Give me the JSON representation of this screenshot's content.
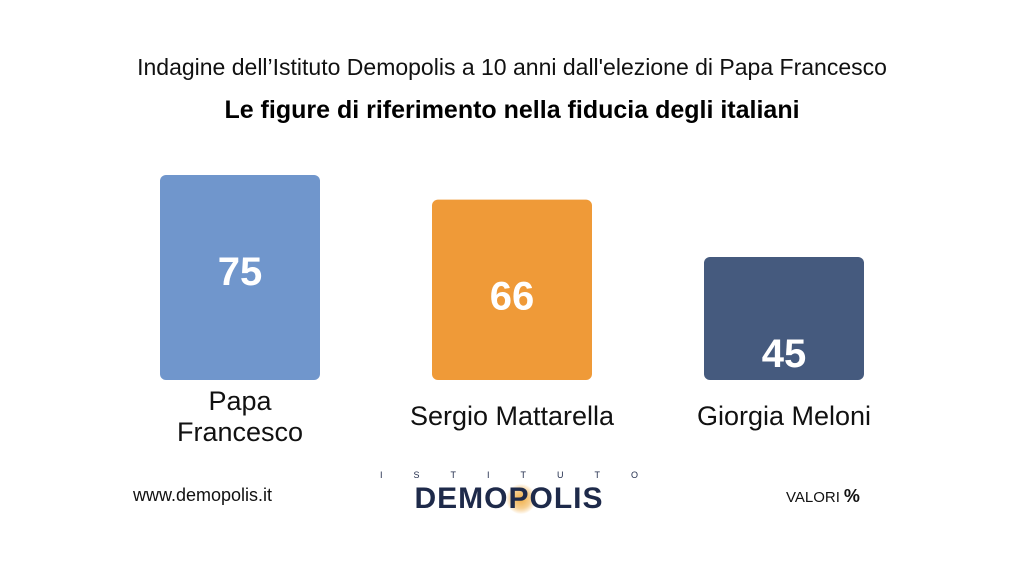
{
  "header": {
    "subtitle": "Indagine dell’Istituto Demopolis a 10 anni dall'elezione di Papa Francesco",
    "title": "Le figure di riferimento nella fiducia degli italiani"
  },
  "footer": {
    "website": "www.demopolis.it",
    "logo_top": "ISTITUTO",
    "logo_main": "DEMOPOLIS",
    "unit_label": "VALORI",
    "unit_symbol": "%"
  },
  "chart_data": {
    "type": "bar",
    "categories": [
      "Papa Francesco",
      "Sergio Mattarella",
      "Giorgia Meloni"
    ],
    "values": [
      75,
      66,
      45
    ],
    "colors": [
      "#7096cc",
      "#ef9a38",
      "#455a7e"
    ],
    "value_label_color": "#ffffff",
    "title": "Le figure di riferimento nella fiducia degli italiani",
    "xlabel": "",
    "ylabel": "",
    "ylim": [
      0,
      75
    ],
    "grid": false,
    "legend": "none"
  }
}
